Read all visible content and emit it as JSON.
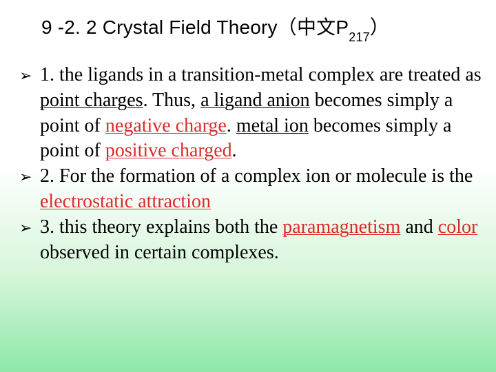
{
  "colors": {
    "text": "#000000",
    "highlight": "#db2a2a",
    "bg_top": "#ffffff",
    "bg_bottom": "#8de8a8"
  },
  "title": {
    "prefix": "9 -2. 2  Crystal Field Theory（中文P",
    "sub": "217",
    "suffix": "）",
    "fontsize": 28,
    "font_family": "Arial"
  },
  "body": {
    "fontsize": 28,
    "font_family": "Times New Roman",
    "bullet_glyph": "➢"
  },
  "items": {
    "i1": {
      "s1": "1.  the ligands in a transition-metal complex are treated as ",
      "u1": "point charges",
      "s2": ". Thus, ",
      "u2": "a ligand anion",
      "s3": " becomes simply a point of ",
      "r1": "negative charge",
      "s4": ". ",
      "u3": "metal ion",
      "s5": " becomes simply a point of ",
      "r2": "positive charged",
      "s6": "."
    },
    "i2": {
      "s1": " 2. For the formation of a complex ion or molecule is the ",
      "r1": "electrostatic attraction"
    },
    "i3": {
      "s1": "3. this theory explains both the ",
      "r1": "paramagnetism",
      "s2": " and ",
      "r2": "color",
      "s3": " observed in certain complexes."
    }
  }
}
